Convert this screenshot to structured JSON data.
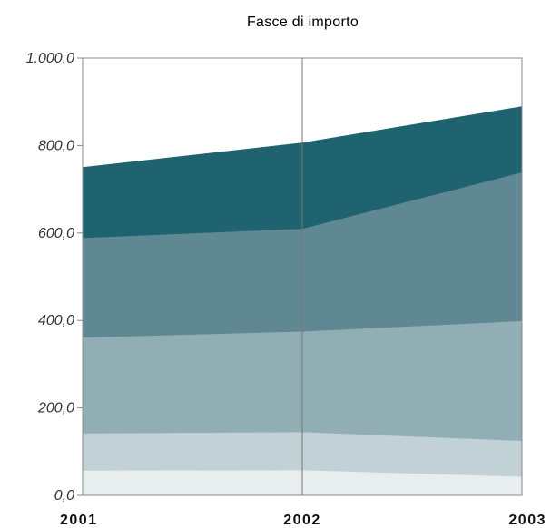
{
  "chart_data": {
    "type": "area",
    "stacked": true,
    "title": "Fasce di importo",
    "xlabel": "",
    "ylabel": "",
    "categories": [
      "2001",
      "2002",
      "2003"
    ],
    "ylim": [
      0,
      1000
    ],
    "y_ticks": [
      0,
      200,
      400,
      600,
      800,
      1000
    ],
    "y_tick_labels": [
      "0,0",
      "200,0",
      "400,0",
      "600,0",
      "800,0",
      "1.000,0"
    ],
    "grid": false,
    "legend": "none",
    "series": [
      {
        "values": [
          57,
          58,
          43
        ],
        "color": "#e8eeee"
      },
      {
        "values": [
          85,
          87,
          82
        ],
        "color": "#c2d1d5"
      },
      {
        "values": [
          219,
          230,
          274
        ],
        "color": "#91aeb4"
      },
      {
        "values": [
          228,
          235,
          340
        ],
        "color": "#5f8893"
      },
      {
        "values": [
          161,
          196,
          150
        ],
        "color": "#1f6370"
      }
    ]
  }
}
